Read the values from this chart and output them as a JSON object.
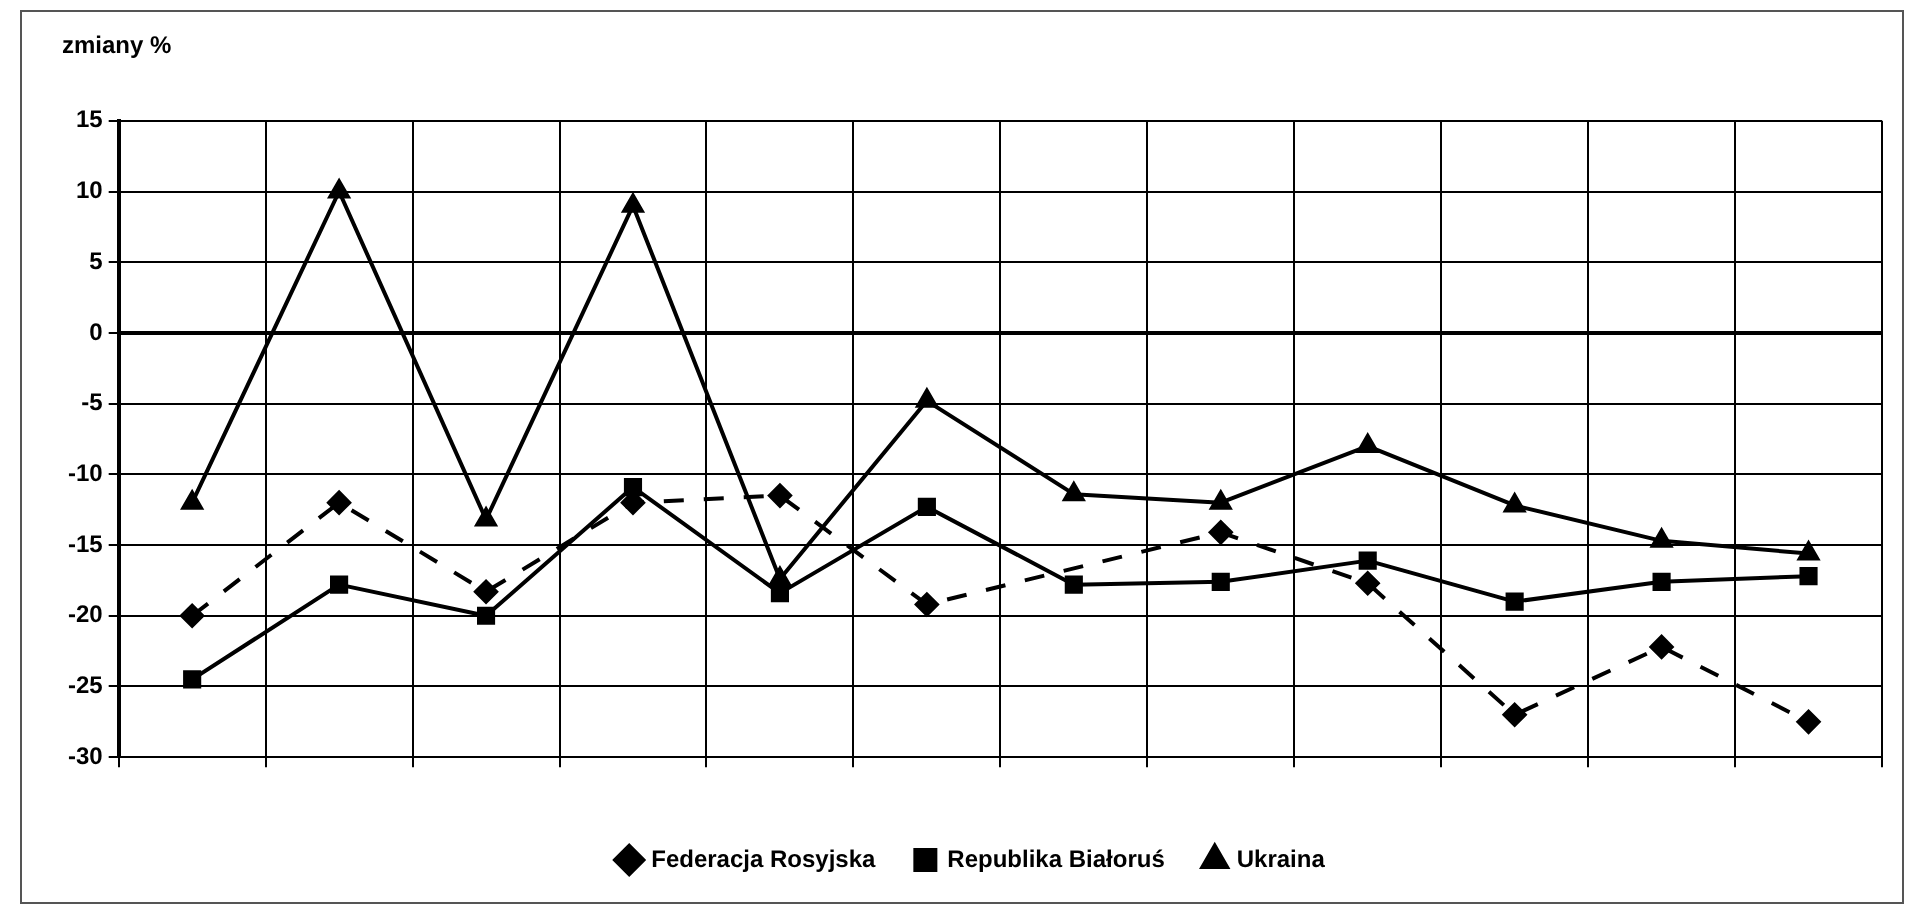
{
  "chart_data": {
    "type": "line",
    "ylabel": "zmiany %",
    "categories": [
      null,
      null,
      null,
      null,
      null,
      null,
      null,
      null,
      null,
      null,
      null,
      null
    ],
    "series": [
      {
        "name": "Federacja Rosyjska",
        "color": "#000000",
        "marker": "diamond",
        "line_style": "dashed",
        "values": [
          -20,
          -12,
          -18.3,
          -12,
          -11.5,
          -19.2,
          null,
          -14.1,
          -17.7,
          -27,
          -22.2,
          -27.5
        ]
      },
      {
        "name": "Republika Białoruś",
        "color": "#000000",
        "marker": "square",
        "line_style": "solid",
        "values": [
          -24.5,
          -17.8,
          -20,
          -10.9,
          -18.4,
          -12.3,
          -17.8,
          -17.6,
          -16.1,
          -19,
          -17.6,
          -17.2
        ]
      },
      {
        "name": "Ukraina",
        "color": "#000000",
        "marker": "triangle",
        "line_style": "solid",
        "values": [
          -12,
          10,
          -13.2,
          9,
          -17.4,
          -4.8,
          -11.4,
          -12,
          -8,
          -12.2,
          -14.7,
          -15.6
        ]
      }
    ],
    "ylim": [
      -30,
      15
    ],
    "yticks": [
      -30,
      -25,
      -20,
      -15,
      -10,
      -5,
      0,
      5,
      10,
      15
    ],
    "grid": true,
    "legend": "bottom",
    "ref_lines": [
      {
        "axis": "y",
        "value": 0
      }
    ]
  }
}
